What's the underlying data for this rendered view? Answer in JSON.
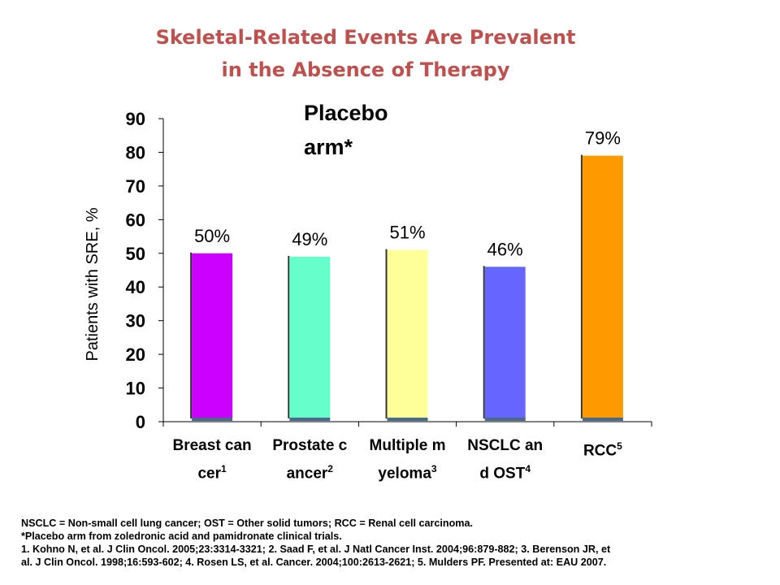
{
  "title_lines": [
    "Skeletal-Related Events Are Prevalent",
    "in the Absence of  Therapy"
  ],
  "annotation_lines": [
    "Placebo",
    "arm*"
  ],
  "chart_data": {
    "type": "bar",
    "categories": [
      "Breast cancer",
      "Prostate cancer",
      "Multiple myeloma",
      "NSCLC and OST",
      "RCC"
    ],
    "category_labels": [
      {
        "text": "Breast cancer",
        "sup": "1"
      },
      {
        "text": "Prostate cancer",
        "sup": "2"
      },
      {
        "text": "Multiple myeloma",
        "sup": "3"
      },
      {
        "text": "NSCLC and OST",
        "sup": "4"
      },
      {
        "text": "RCC",
        "sup": "5"
      }
    ],
    "values": [
      50,
      49,
      51,
      46,
      79
    ],
    "value_labels": [
      "50%",
      "49%",
      "51%",
      "46%",
      "79%"
    ],
    "colors": [
      "#cc00ff",
      "#66ffcc",
      "#ffff99",
      "#6666ff",
      "#ff9900"
    ],
    "ylabel": "Patients with SRE, %",
    "ylim": [
      0,
      90
    ],
    "yticks": [
      "0",
      "10",
      "20",
      "30",
      "40",
      "50",
      "60",
      "70",
      "80",
      "90"
    ],
    "grid": false
  },
  "footnotes": [
    "NSCLC = Non-small cell lung cancer; OST = Other solid tumors; RCC = Renal cell carcinoma.",
    "*Placebo arm from zoledronic acid and pamidronate clinical trials.",
    "1. Kohno N, et al. J Clin Oncol. 2005;23:3314-3321; 2. Saad F, et al. J Natl Cancer Inst. 2004;96:879-882; 3. Berenson JR, et",
    "al. J Clin Oncol. 1998;16:593-602; 4. Rosen LS, et al. Cancer. 2004;100:2613-2621; 5. Mulders PF. Presented at: EAU 2007."
  ]
}
